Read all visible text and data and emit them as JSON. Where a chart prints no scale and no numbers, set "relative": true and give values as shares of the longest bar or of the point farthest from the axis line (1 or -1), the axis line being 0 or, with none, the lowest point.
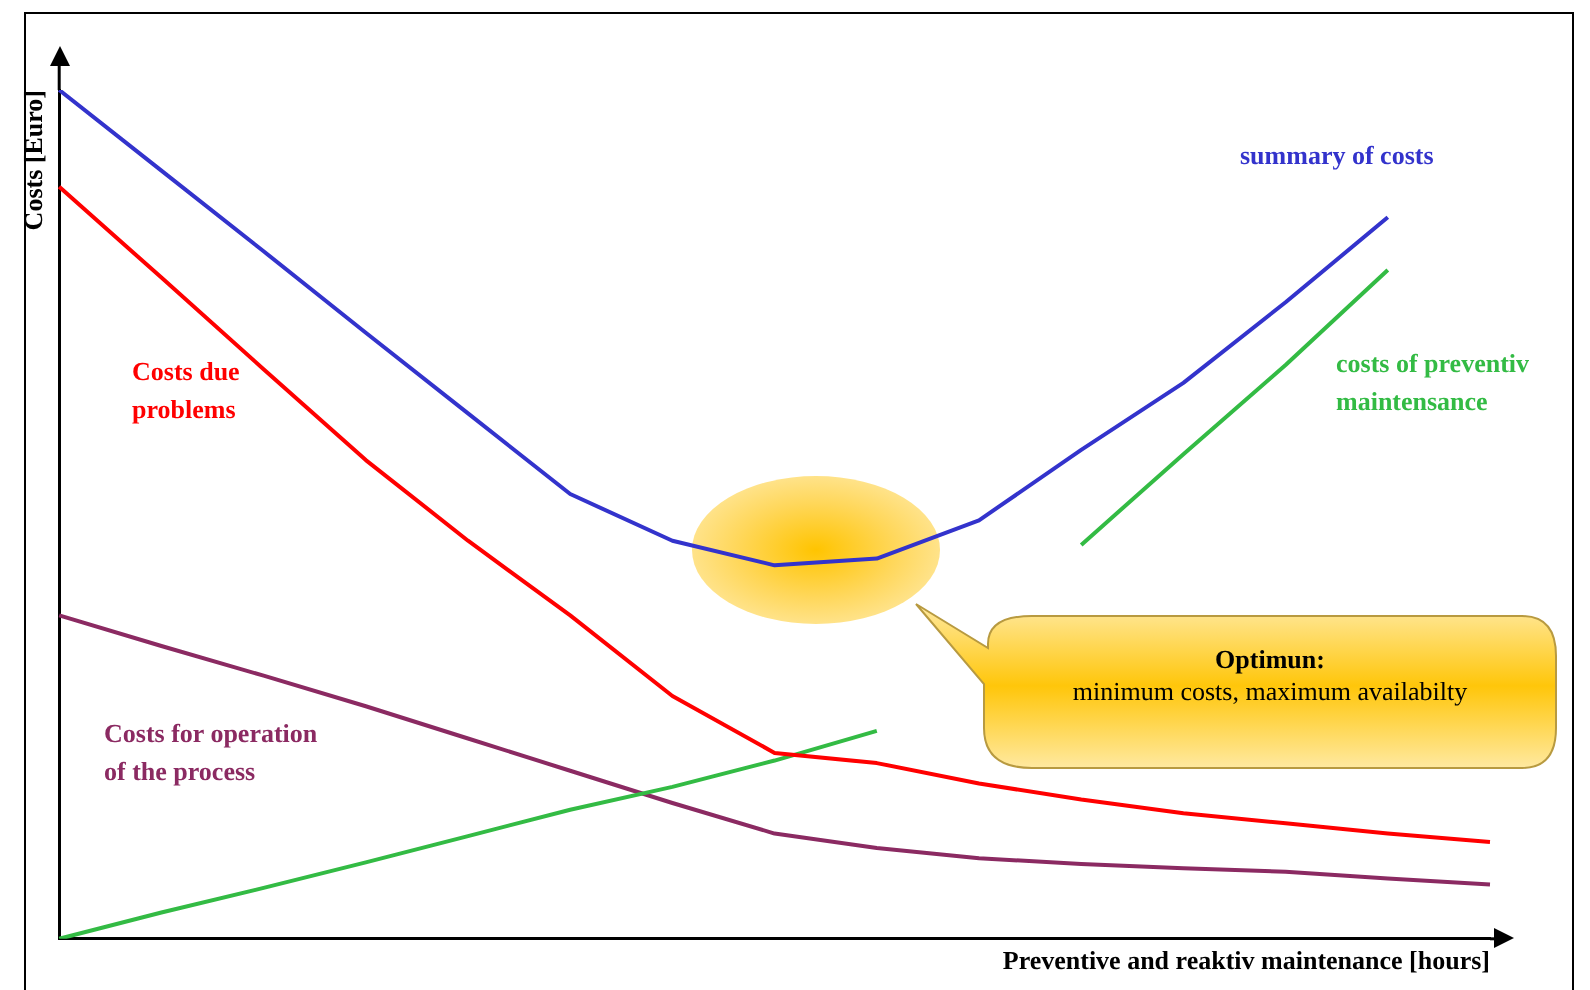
{
  "chart_data": {
    "type": "line",
    "relative": true,
    "xlabel": "Preventive and reaktiv maintenance [hours]",
    "ylabel": "Costs [Euro]",
    "categories": [
      null,
      null,
      null,
      null,
      null,
      null,
      null,
      null,
      null,
      null,
      null,
      null,
      null,
      null,
      null
    ],
    "series": [
      {
        "name": "summary of costs",
        "color": "#3333cc",
        "values": [
          1,
          0.905,
          0.81,
          0.714,
          0.619,
          0.524,
          0.469,
          0.44,
          0.448,
          0.493,
          0.576,
          0.655,
          0.75,
          0.85,
          null
        ]
      },
      {
        "name": "Costs due problems",
        "color": "#ff0000",
        "values": [
          0.886,
          0.779,
          0.671,
          0.564,
          0.469,
          0.381,
          0.286,
          0.219,
          0.207,
          0.183,
          0.164,
          0.148,
          0.136,
          0.124,
          0.114
        ]
      },
      {
        "name": "costs of preventiv maintensance",
        "color": "#33bb44",
        "values": [
          0,
          0.031,
          0.06,
          0.09,
          0.121,
          0.152,
          0.179,
          0.21,
          0.245,
          null,
          0.464,
          0.571,
          0.676,
          0.788,
          null
        ]
      },
      {
        "name": "Costs for operation of the process",
        "color": "#8b2a62",
        "values": [
          0.381,
          0.345,
          0.31,
          0.274,
          0.236,
          0.198,
          0.16,
          0.124,
          0.107,
          0.095,
          0.088,
          0.083,
          0.079,
          0.071,
          0.064
        ]
      }
    ],
    "annotations": [
      "Optimun:\nminimum costs, maximum availabilty"
    ],
    "grid": false,
    "legend": false,
    "marker": "none",
    "line_style": "solid"
  }
}
